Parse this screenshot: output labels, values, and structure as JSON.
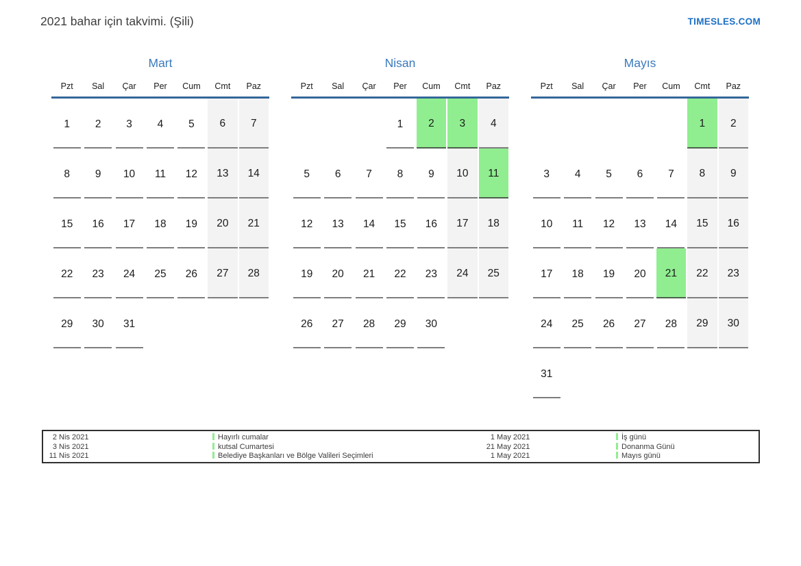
{
  "page": {
    "title": "2021 bahar için takvimi. (Şili)",
    "site_link": "TIMESLES.COM"
  },
  "colors": {
    "accent_blue": "#3a7abc",
    "divider_blue": "#336699",
    "link_blue": "#1c6fc4",
    "holiday_green": "#90ee90",
    "weekend_gray": "#f3f3f3"
  },
  "weekdays": [
    "Pzt",
    "Sal",
    "Çar",
    "Per",
    "Cum",
    "Cmt",
    "Paz"
  ],
  "months": [
    {
      "name": "Mart",
      "weeks": [
        [
          {
            "d": 1,
            "t": "p"
          },
          {
            "d": 2,
            "t": "p"
          },
          {
            "d": 3,
            "t": "p"
          },
          {
            "d": 4,
            "t": "p"
          },
          {
            "d": 5,
            "t": "p"
          },
          {
            "d": 6,
            "t": "w"
          },
          {
            "d": 7,
            "t": "w"
          }
        ],
        [
          {
            "d": 8,
            "t": "p"
          },
          {
            "d": 9,
            "t": "p"
          },
          {
            "d": 10,
            "t": "p"
          },
          {
            "d": 11,
            "t": "p"
          },
          {
            "d": 12,
            "t": "p"
          },
          {
            "d": 13,
            "t": "w"
          },
          {
            "d": 14,
            "t": "w"
          }
        ],
        [
          {
            "d": 15,
            "t": "p"
          },
          {
            "d": 16,
            "t": "p"
          },
          {
            "d": 17,
            "t": "p"
          },
          {
            "d": 18,
            "t": "p"
          },
          {
            "d": 19,
            "t": "p"
          },
          {
            "d": 20,
            "t": "w"
          },
          {
            "d": 21,
            "t": "w"
          }
        ],
        [
          {
            "d": 22,
            "t": "p"
          },
          {
            "d": 23,
            "t": "p"
          },
          {
            "d": 24,
            "t": "p"
          },
          {
            "d": 25,
            "t": "p"
          },
          {
            "d": 26,
            "t": "p"
          },
          {
            "d": 27,
            "t": "w"
          },
          {
            "d": 28,
            "t": "w"
          }
        ],
        [
          {
            "d": 29,
            "t": "p"
          },
          {
            "d": 30,
            "t": "p"
          },
          {
            "d": 31,
            "t": "p"
          },
          null,
          null,
          null,
          null
        ]
      ]
    },
    {
      "name": "Nisan",
      "weeks": [
        [
          null,
          null,
          null,
          {
            "d": 1,
            "t": "p"
          },
          {
            "d": 2,
            "t": "h"
          },
          {
            "d": 3,
            "t": "h"
          },
          {
            "d": 4,
            "t": "w"
          }
        ],
        [
          {
            "d": 5,
            "t": "p"
          },
          {
            "d": 6,
            "t": "p"
          },
          {
            "d": 7,
            "t": "p"
          },
          {
            "d": 8,
            "t": "p"
          },
          {
            "d": 9,
            "t": "p"
          },
          {
            "d": 10,
            "t": "w"
          },
          {
            "d": 11,
            "t": "h"
          }
        ],
        [
          {
            "d": 12,
            "t": "p"
          },
          {
            "d": 13,
            "t": "p"
          },
          {
            "d": 14,
            "t": "p"
          },
          {
            "d": 15,
            "t": "p"
          },
          {
            "d": 16,
            "t": "p"
          },
          {
            "d": 17,
            "t": "w"
          },
          {
            "d": 18,
            "t": "w"
          }
        ],
        [
          {
            "d": 19,
            "t": "p"
          },
          {
            "d": 20,
            "t": "p"
          },
          {
            "d": 21,
            "t": "p"
          },
          {
            "d": 22,
            "t": "p"
          },
          {
            "d": 23,
            "t": "p"
          },
          {
            "d": 24,
            "t": "w"
          },
          {
            "d": 25,
            "t": "w"
          }
        ],
        [
          {
            "d": 26,
            "t": "p"
          },
          {
            "d": 27,
            "t": "p"
          },
          {
            "d": 28,
            "t": "p"
          },
          {
            "d": 29,
            "t": "p"
          },
          {
            "d": 30,
            "t": "p"
          },
          null,
          null
        ]
      ]
    },
    {
      "name": "Mayıs",
      "weeks": [
        [
          null,
          null,
          null,
          null,
          null,
          {
            "d": 1,
            "t": "h"
          },
          {
            "d": 2,
            "t": "w"
          }
        ],
        [
          {
            "d": 3,
            "t": "p"
          },
          {
            "d": 4,
            "t": "p"
          },
          {
            "d": 5,
            "t": "p"
          },
          {
            "d": 6,
            "t": "p"
          },
          {
            "d": 7,
            "t": "p"
          },
          {
            "d": 8,
            "t": "w"
          },
          {
            "d": 9,
            "t": "w"
          }
        ],
        [
          {
            "d": 10,
            "t": "p"
          },
          {
            "d": 11,
            "t": "p"
          },
          {
            "d": 12,
            "t": "p"
          },
          {
            "d": 13,
            "t": "p"
          },
          {
            "d": 14,
            "t": "p"
          },
          {
            "d": 15,
            "t": "w"
          },
          {
            "d": 16,
            "t": "w"
          }
        ],
        [
          {
            "d": 17,
            "t": "p"
          },
          {
            "d": 18,
            "t": "p"
          },
          {
            "d": 19,
            "t": "p"
          },
          {
            "d": 20,
            "t": "p"
          },
          {
            "d": 21,
            "t": "h"
          },
          {
            "d": 22,
            "t": "w"
          },
          {
            "d": 23,
            "t": "w"
          }
        ],
        [
          {
            "d": 24,
            "t": "p"
          },
          {
            "d": 25,
            "t": "p"
          },
          {
            "d": 26,
            "t": "p"
          },
          {
            "d": 27,
            "t": "p"
          },
          {
            "d": 28,
            "t": "p"
          },
          {
            "d": 29,
            "t": "w"
          },
          {
            "d": 30,
            "t": "w"
          }
        ],
        [
          {
            "d": 31,
            "t": "p"
          },
          null,
          null,
          null,
          null,
          null,
          null
        ]
      ]
    }
  ],
  "legend": {
    "left": [
      {
        "date": "2 Nis 2021",
        "label": "Hayırlı cumalar"
      },
      {
        "date": "3 Nis 2021",
        "label": "kutsal Cumartesi"
      },
      {
        "date": "11 Nis 2021",
        "label": "Belediye Başkanları ve Bölge Valileri Seçimleri"
      }
    ],
    "right": [
      {
        "date": "1 May 2021",
        "label": "İş günü"
      },
      {
        "date": "21 May 2021",
        "label": "Donanma Günü"
      },
      {
        "date": "1 May 2021",
        "label": "Mayıs günü"
      }
    ]
  }
}
